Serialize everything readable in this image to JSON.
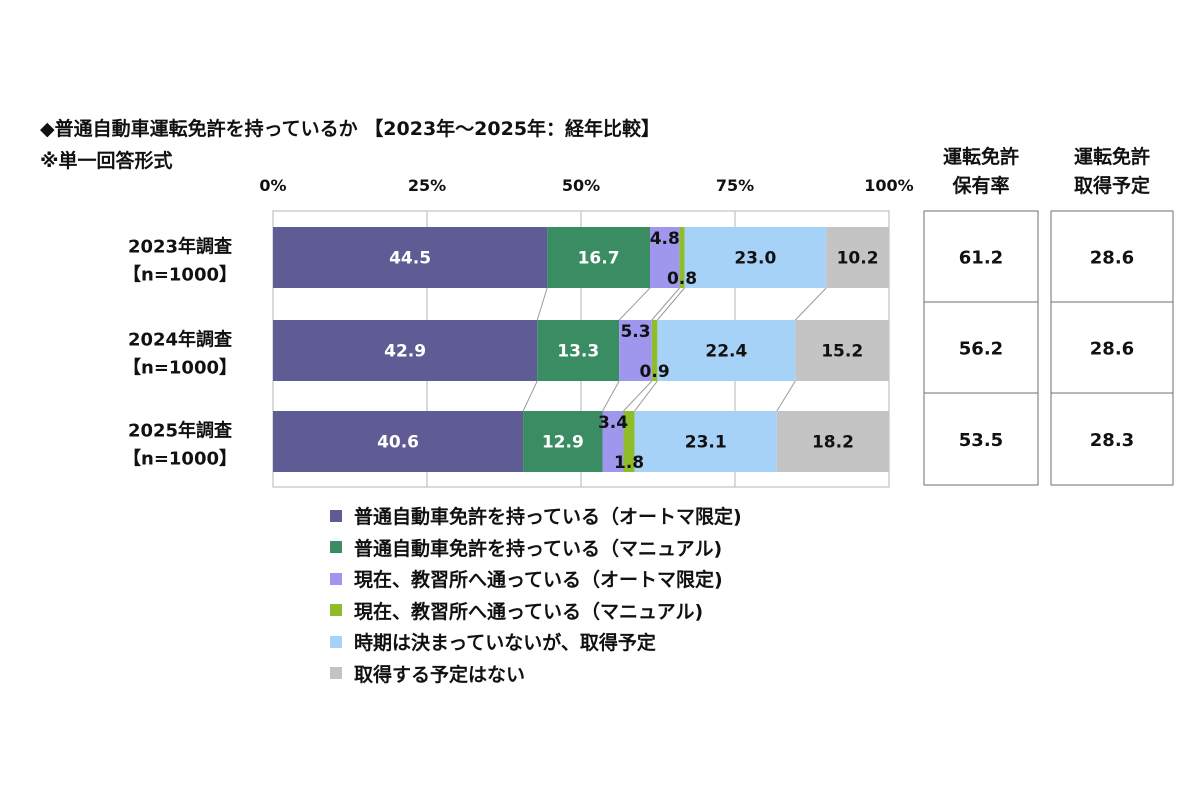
{
  "title": "◆普通自動車運転免許を持っているか 【2023年～2025年：経年比較】",
  "subtitle": "※単一回答形式",
  "table_headers": [
    {
      "line1": "運転免許",
      "line2": "保有率"
    },
    {
      "line1": "運転免許",
      "line2": "取得予定"
    }
  ],
  "table_values": [
    [
      "61.2",
      "28.6"
    ],
    [
      "56.2",
      "28.6"
    ],
    [
      "53.5",
      "28.3"
    ]
  ],
  "chart_data": {
    "type": "bar",
    "orientation": "horizontal",
    "stacked": true,
    "percent_stacked": true,
    "xlim": [
      0,
      100
    ],
    "x_tick_labels": [
      "0%",
      "25%",
      "50%",
      "75%",
      "100%"
    ],
    "grid": true,
    "legend_position": "bottom",
    "categories": [
      {
        "line1": "2023年調査",
        "line2": "【n=1000】"
      },
      {
        "line1": "2024年調査",
        "line2": "【n=1000】"
      },
      {
        "line1": "2025年調査",
        "line2": "【n=1000】"
      }
    ],
    "series": [
      {
        "name": "普通自動車免許を持っている（オートマ限定)",
        "color": "#5f5b94",
        "label_color": "#ffffff",
        "values": [
          44.5,
          42.9,
          40.6
        ]
      },
      {
        "name": "普通自動車免許を持っている（マニュアル)",
        "color": "#3a8c63",
        "label_color": "#ffffff",
        "values": [
          16.7,
          13.3,
          12.9
        ]
      },
      {
        "name": "現在、教習所へ通っている（オートマ限定)",
        "color": "#9f97ee",
        "label_color": "#111111",
        "values": [
          4.8,
          5.3,
          3.4
        ]
      },
      {
        "name": "現在、教習所へ通っている（マニュアル)",
        "color": "#8fbd2a",
        "label_color": "#111111",
        "values": [
          0.8,
          0.9,
          1.8
        ]
      },
      {
        "name": "時期は決まっていないが、取得予定",
        "color": "#a7d2f7",
        "label_color": "#111111",
        "values": [
          23.0,
          22.4,
          23.1
        ]
      },
      {
        "name": "取得する予定はない",
        "color": "#c4c4c4",
        "label_color": "#111111",
        "values": [
          10.2,
          15.2,
          18.2
        ]
      }
    ],
    "value_labels": [
      [
        "44.5",
        "16.7",
        "4.8",
        "0.8",
        "23.0",
        "10.2"
      ],
      [
        "42.9",
        "13.3",
        "5.3",
        "0.9",
        "22.4",
        "15.2"
      ],
      [
        "40.6",
        "12.9",
        "3.4",
        "1.8",
        "23.1",
        "18.2"
      ]
    ]
  }
}
